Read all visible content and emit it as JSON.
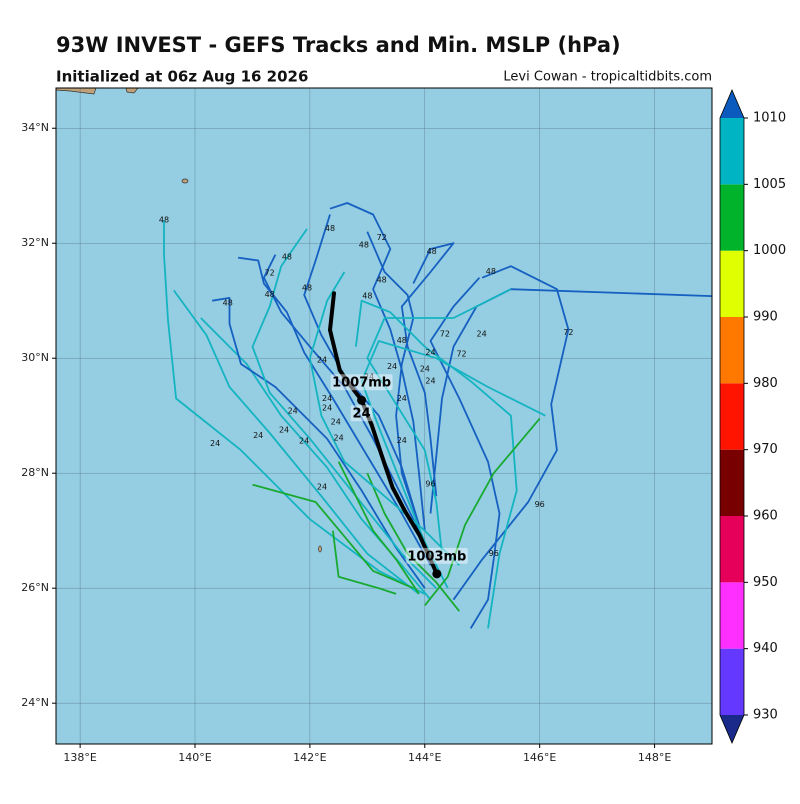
{
  "chart_data": {
    "type": "track-map",
    "title": "93W INVEST - GEFS Tracks and Min. MSLP (hPa)",
    "subtitle": "Initialized at 06z Aug 16 2026",
    "credit": "Levi Cowan - tropicaltidbits.com",
    "xlim": [
      137.58,
      149.0
    ],
    "ylim": [
      23.29,
      34.7
    ],
    "xticks": [
      {
        "value": 138,
        "label": "138°E"
      },
      {
        "value": 140,
        "label": "140°E"
      },
      {
        "value": 142,
        "label": "142°E"
      },
      {
        "value": 144,
        "label": "144°E"
      },
      {
        "value": 146,
        "label": "146°E"
      },
      {
        "value": 148,
        "label": "148°E"
      }
    ],
    "yticks": [
      {
        "value": 24,
        "label": "24°N"
      },
      {
        "value": 26,
        "label": "26°N"
      },
      {
        "value": 28,
        "label": "28°N"
      },
      {
        "value": 30,
        "label": "30°N"
      },
      {
        "value": 32,
        "label": "32°N"
      },
      {
        "value": 34,
        "label": "34°N"
      }
    ],
    "grid": true,
    "ocean_color": "#95cde3",
    "tracks": [
      {
        "color": "#14b4c0",
        "lon": [
          139.46,
          139.46,
          139.53,
          139.67,
          140.8,
          142.0,
          143.2,
          144.0
        ],
        "lat": [
          32.4,
          31.8,
          30.66,
          29.3,
          28.4,
          27.2,
          26.3,
          25.9
        ]
      },
      {
        "color": "#14b4c0",
        "lon": [
          139.63,
          140.2,
          140.6,
          141.3,
          142.2,
          143.0,
          143.9
        ],
        "lat": [
          31.18,
          30.4,
          29.5,
          28.7,
          27.6,
          26.6,
          25.9
        ]
      },
      {
        "color": "#14b4c0",
        "lon": [
          140.1,
          140.9,
          141.5,
          142.3,
          142.9,
          143.6,
          144.1
        ],
        "lat": [
          30.7,
          29.9,
          29.0,
          28.1,
          27.2,
          26.4,
          25.8
        ]
      },
      {
        "color": "#1560c0",
        "lon": [
          140.3,
          140.6,
          140.6,
          140.8,
          141.4,
          142.3,
          142.9,
          143.5,
          144.0
        ],
        "lat": [
          31.0,
          31.05,
          30.6,
          29.9,
          29.5,
          28.6,
          27.7,
          26.7,
          26.0
        ]
      },
      {
        "color": "#1560c0",
        "lon": [
          140.75,
          141.1,
          141.2,
          141.6,
          141.9,
          142.4,
          143.0,
          143.6,
          144.1
        ],
        "lat": [
          31.75,
          31.7,
          31.3,
          30.8,
          30.1,
          29.3,
          28.3,
          27.3,
          26.4
        ]
      },
      {
        "color": "#14b4c0",
        "lon": [
          141.95,
          141.5,
          141.3,
          141.0,
          141.3,
          142.0,
          142.8,
          143.6,
          144.2
        ],
        "lat": [
          32.25,
          31.6,
          30.9,
          30.2,
          29.4,
          28.6,
          27.6,
          26.6,
          26.0
        ]
      },
      {
        "color": "#1560c0",
        "lon": [
          141.4,
          141.2,
          141.5,
          142.0,
          142.6,
          143.1,
          143.6,
          144.0
        ],
        "lat": [
          31.8,
          31.4,
          30.8,
          30.2,
          29.5,
          28.6,
          27.6,
          26.8
        ]
      },
      {
        "color": "#1560c0",
        "lon": [
          142.35,
          142.65,
          143.1,
          143.4,
          143.1,
          143.4,
          143.6,
          143.8,
          143.9,
          144.0
        ],
        "lat": [
          32.6,
          32.7,
          32.5,
          31.9,
          31.2,
          30.5,
          29.8,
          28.9,
          28.0,
          27.0
        ]
      },
      {
        "color": "#1560c0",
        "lon": [
          142.35,
          142.1,
          141.9,
          142.2,
          142.6,
          143.2,
          143.6,
          143.9
        ],
        "lat": [
          32.5,
          31.7,
          31.1,
          30.4,
          29.7,
          29.0,
          28.1,
          27.1
        ]
      },
      {
        "color": "#1560c0",
        "lon": [
          143.0,
          143.3,
          143.7,
          143.8,
          143.6,
          143.5,
          143.6,
          143.9
        ],
        "lat": [
          32.2,
          31.5,
          31.1,
          30.7,
          29.9,
          29.0,
          28.0,
          27.1
        ]
      },
      {
        "color": "#1560c0",
        "lon": [
          143.8,
          144.1,
          144.5,
          144.1,
          143.6,
          143.7,
          144.0,
          144.1,
          144.2
        ],
        "lat": [
          31.3,
          31.9,
          32.0,
          31.5,
          30.9,
          30.2,
          29.4,
          28.6,
          27.6
        ]
      },
      {
        "color": "#1560c0",
        "lon": [
          149.0,
          145.5,
          144.9,
          144.5,
          144.3,
          144.2,
          144.1
        ],
        "lat": [
          31.08,
          31.2,
          30.9,
          30.2,
          29.3,
          28.3,
          27.3
        ]
      },
      {
        "color": "#1560c0",
        "lon": [
          145.0,
          145.5,
          146.3,
          146.5,
          146.2,
          146.3,
          145.8,
          145.0,
          144.5
        ],
        "lat": [
          31.4,
          31.6,
          31.2,
          30.5,
          29.2,
          28.4,
          27.5,
          26.5,
          25.8
        ]
      },
      {
        "color": "#1560c0",
        "lon": [
          144.95,
          144.5,
          144.1,
          144.6,
          145.1,
          145.3,
          145.2,
          145.1,
          144.8
        ],
        "lat": [
          31.4,
          30.9,
          30.3,
          29.3,
          28.2,
          27.3,
          26.5,
          25.8,
          25.3
        ]
      },
      {
        "color": "#14b4c0",
        "lon": [
          145.5,
          144.5,
          143.3,
          143.0,
          143.5,
          144.0,
          144.2,
          144.3
        ],
        "lat": [
          31.2,
          30.7,
          30.7,
          30.0,
          29.2,
          28.4,
          27.5,
          26.6
        ]
      },
      {
        "color": "#14b4c0",
        "lon": [
          146.1,
          145.1,
          144.2,
          143.2,
          142.9,
          143.2,
          143.6,
          144.0,
          144.4
        ],
        "lat": [
          29.0,
          29.5,
          30.0,
          30.3,
          29.6,
          28.8,
          27.8,
          26.8,
          26.0
        ]
      },
      {
        "color": "#14b4c0",
        "lon": [
          145.1,
          145.3,
          145.6,
          145.5,
          144.8,
          144.0,
          143.4,
          142.9,
          142.8
        ],
        "lat": [
          25.3,
          26.6,
          27.7,
          29.0,
          29.6,
          30.2,
          30.8,
          31.0,
          30.2
        ]
      },
      {
        "color": "#18aa30",
        "lon": [
          146.0,
          145.2,
          144.7,
          144.4,
          144.0
        ],
        "lat": [
          28.95,
          28.0,
          27.1,
          26.2,
          25.7
        ]
      },
      {
        "color": "#18aa30",
        "lon": [
          142.5,
          142.8,
          143.1,
          143.5,
          143.9
        ],
        "lat": [
          28.2,
          27.6,
          27.0,
          26.5,
          25.9
        ]
      },
      {
        "color": "#18aa30",
        "lon": [
          141.0,
          142.1,
          142.6,
          143.1,
          143.8
        ],
        "lat": [
          27.8,
          27.5,
          26.9,
          26.3,
          26.0
        ]
      },
      {
        "color": "#18aa30",
        "lon": [
          143.0,
          143.3,
          143.7,
          144.2,
          144.6
        ],
        "lat": [
          28.0,
          27.3,
          26.6,
          26.1,
          25.6
        ]
      },
      {
        "color": "#18aa30",
        "lon": [
          142.4,
          142.5,
          143.2,
          143.5
        ],
        "lat": [
          27.0,
          26.2,
          26.0,
          25.9
        ]
      },
      {
        "color": "#14b4c0",
        "lon": [
          144.6,
          144.0,
          143.3,
          142.6,
          142.2,
          142.0,
          142.3,
          142.6
        ],
        "lat": [
          26.4,
          27.0,
          27.6,
          28.2,
          29.0,
          30.0,
          31.0,
          31.5
        ]
      }
    ],
    "hour_labels": {
      "lon": [
        139.46,
        141.6,
        141.3,
        141.3,
        140.57,
        141.95,
        142.35,
        142.94,
        143.25,
        144.12,
        145.15,
        143.25,
        143.0,
        143.6,
        144.35,
        144.99,
        146.5,
        144.64,
        142.21,
        144.1,
        144.0,
        144.1,
        142.3,
        142.3,
        143.6,
        141.7,
        142.45,
        141.1,
        140.35,
        141.55,
        141.9,
        142.5,
        143.6,
        142.21,
        144.1,
        146.0,
        145.2,
        143.03,
        143.43
      ],
      "lat": [
        32.4,
        31.76,
        31.48,
        31.11,
        30.96,
        31.22,
        32.26,
        31.97,
        32.1,
        31.86,
        31.51,
        31.36,
        31.08,
        30.31,
        30.42,
        30.42,
        30.45,
        30.07,
        29.97,
        30.1,
        29.81,
        29.6,
        29.3,
        29.13,
        29.3,
        29.08,
        28.89,
        28.66,
        28.52,
        28.75,
        28.56,
        28.61,
        28.57,
        27.76,
        27.81,
        27.46,
        26.6,
        29.67,
        29.86
      ],
      "values": [
        48,
        48,
        72,
        48,
        48,
        48,
        48,
        48,
        72,
        48,
        48,
        48,
        48,
        48,
        72,
        24,
        72,
        72,
        24,
        24,
        24,
        24,
        24,
        24,
        24,
        24,
        24,
        24,
        24,
        24,
        24,
        24,
        24,
        24,
        96,
        96,
        96,
        24,
        24
      ]
    },
    "mean_track": {
      "color": "#000000",
      "lon": [
        142.42,
        142.35,
        142.52,
        142.7,
        142.9,
        143.08,
        143.25,
        143.44,
        143.65,
        143.91,
        144.21
      ],
      "lat": [
        31.13,
        30.49,
        29.79,
        29.53,
        29.27,
        28.83,
        28.31,
        27.75,
        27.35,
        26.92,
        26.25
      ],
      "dots": {
        "lon": [
          142.9,
          144.21
        ],
        "lat": [
          29.27,
          26.25
        ],
        "labels": [
          "1007mb",
          "1003mb"
        ]
      },
      "hour_label": 24
    },
    "colorbar": {
      "levels": [
        930,
        940,
        950,
        960,
        970,
        980,
        990,
        1000,
        1005,
        1010
      ],
      "colors": [
        "#6438ff",
        "#ff30ff",
        "#e6005a",
        "#780000",
        "#ff1400",
        "#ff7800",
        "#e0ff00",
        "#00b32a",
        "#00b4c4"
      ],
      "under_color": "#1a2a8a",
      "over_color": "#0a5bbd"
    }
  }
}
